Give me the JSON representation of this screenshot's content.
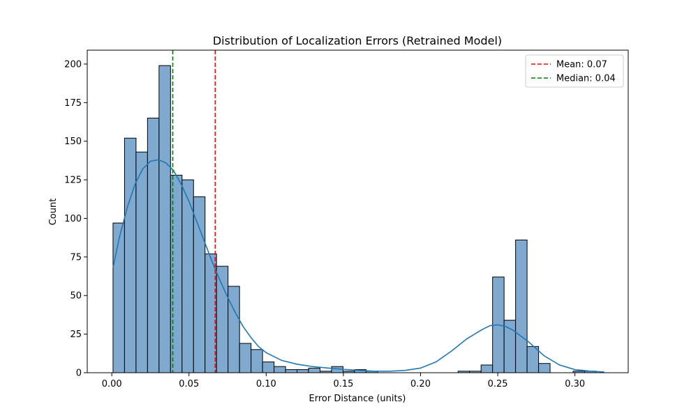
{
  "chart_data": {
    "type": "histogram",
    "title": "Distribution of Localization Errors (Retrained Model)",
    "xlabel": "Error Distance (units)",
    "ylabel": "Count",
    "xlim": [
      -0.0159,
      0.3345
    ],
    "ylim": [
      0,
      209
    ],
    "xticks": [
      0.0,
      0.05,
      0.1,
      0.15,
      0.2,
      0.25,
      0.3
    ],
    "xtick_labels": [
      "0.00",
      "0.05",
      "0.10",
      "0.15",
      "0.20",
      "0.25",
      "0.30"
    ],
    "yticks": [
      0,
      25,
      50,
      75,
      100,
      125,
      150,
      175,
      200
    ],
    "ytick_labels": [
      "0",
      "25",
      "50",
      "75",
      "100",
      "125",
      "150",
      "175",
      "200"
    ],
    "bin_start": 0.0008,
    "bin_width": 0.00745,
    "counts": [
      97,
      152,
      143,
      165,
      199,
      128,
      125,
      114,
      77,
      69,
      56,
      19,
      15,
      7,
      4,
      2,
      2,
      3,
      1,
      4,
      1,
      2,
      1,
      0,
      0,
      0,
      0,
      0,
      0,
      0,
      1,
      1,
      5,
      62,
      34,
      86,
      17,
      6,
      0,
      0,
      1,
      1
    ],
    "bar_color": "#7fa9cf",
    "bar_edge_color": "#000000",
    "kde": {
      "color": "#1f77b4",
      "x": [
        0.0008,
        0.005,
        0.01,
        0.015,
        0.02,
        0.025,
        0.03,
        0.035,
        0.04,
        0.045,
        0.05,
        0.055,
        0.06,
        0.065,
        0.07,
        0.075,
        0.08,
        0.085,
        0.09,
        0.095,
        0.1,
        0.11,
        0.12,
        0.13,
        0.14,
        0.15,
        0.16,
        0.17,
        0.18,
        0.19,
        0.2,
        0.21,
        0.22,
        0.23,
        0.24,
        0.245,
        0.25,
        0.255,
        0.26,
        0.27,
        0.28,
        0.29,
        0.3,
        0.31,
        0.319
      ],
      "y": [
        68,
        88,
        107,
        122,
        132,
        137,
        138,
        136,
        131,
        122,
        111,
        98,
        85,
        72,
        60,
        49,
        39,
        30,
        23,
        17,
        13,
        8,
        5.5,
        4,
        3,
        2.2,
        1.5,
        1,
        1,
        1.5,
        3,
        7,
        14,
        22,
        28,
        30.5,
        31,
        30,
        27.5,
        20,
        11,
        5,
        2,
        1,
        0.5
      ]
    },
    "reference_lines": [
      {
        "name": "Mean: 0.07",
        "x": 0.067,
        "color": "#ff0000",
        "style": "dashed"
      },
      {
        "name": "Median: 0.04",
        "x": 0.0395,
        "color": "#008000",
        "style": "dashed"
      }
    ],
    "legend_position": "top-right",
    "grid": false
  }
}
